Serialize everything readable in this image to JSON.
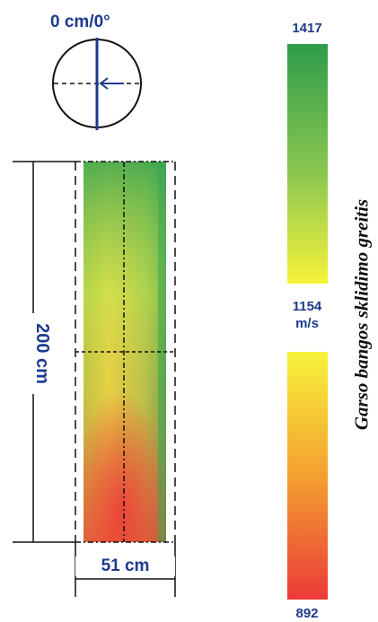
{
  "orientation_label": "0 cm/0°",
  "length_label": "200 cm",
  "width_label": "51 cm",
  "scale": {
    "max_label": "1417",
    "mid_label": "1154",
    "unit_label": "m/s",
    "min_label": "892",
    "colors": {
      "green": "#2e9c4a",
      "yellow": "#f7f33a",
      "orange": "#f4a030",
      "red": "#ec3a3a"
    }
  },
  "title_vertical": "Garso bangos sklidimo greitis",
  "accent_color": "#1c3a8c"
}
